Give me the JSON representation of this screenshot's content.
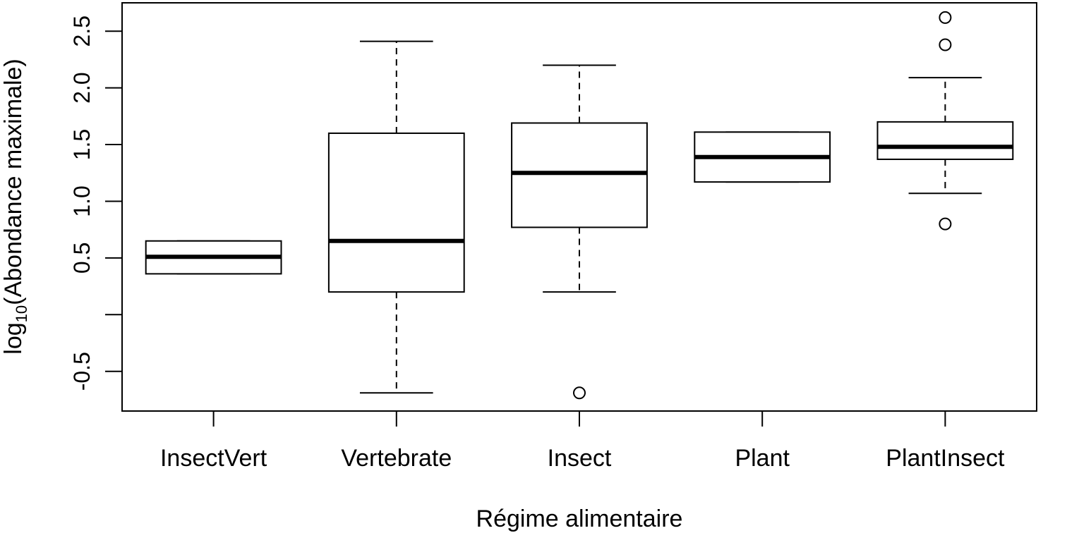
{
  "chart_data": {
    "type": "boxplot",
    "title": "",
    "xlabel": "Régime alimentaire",
    "ylabel": {
      "prefix": "log",
      "subscript": "10",
      "suffix": "(Abondance maximale)"
    },
    "ylim": [
      -0.85,
      2.75
    ],
    "y_ticks": [
      -0.5,
      0,
      0.5,
      1.0,
      1.5,
      2.0,
      2.5
    ],
    "y_tick_labels": [
      "-0.5",
      "",
      "0.5",
      "1.0",
      "1.5",
      "2.0",
      "2.5"
    ],
    "categories": [
      "InsectVert",
      "Vertebrate",
      "Insect",
      "Plant",
      "PlantInsect"
    ],
    "boxes": [
      {
        "category": "InsectVert",
        "whisker_low": 0.36,
        "q1": 0.36,
        "median": 0.51,
        "q3": 0.65,
        "whisker_high": 0.65,
        "outliers": []
      },
      {
        "category": "Vertebrate",
        "whisker_low": -0.69,
        "q1": 0.2,
        "median": 0.65,
        "q3": 1.6,
        "whisker_high": 2.41,
        "outliers": []
      },
      {
        "category": "Insect",
        "whisker_low": 0.2,
        "q1": 0.77,
        "median": 1.25,
        "q3": 1.69,
        "whisker_high": 2.2,
        "outliers": [
          -0.69
        ]
      },
      {
        "category": "Plant",
        "whisker_low": 1.17,
        "q1": 1.17,
        "median": 1.39,
        "q3": 1.61,
        "whisker_high": 1.61,
        "outliers": []
      },
      {
        "category": "PlantInsect",
        "whisker_low": 1.07,
        "q1": 1.37,
        "median": 1.48,
        "q3": 1.7,
        "whisker_high": 2.09,
        "outliers": [
          2.62,
          2.38,
          0.8
        ]
      }
    ],
    "grid": false,
    "legend": "none"
  }
}
